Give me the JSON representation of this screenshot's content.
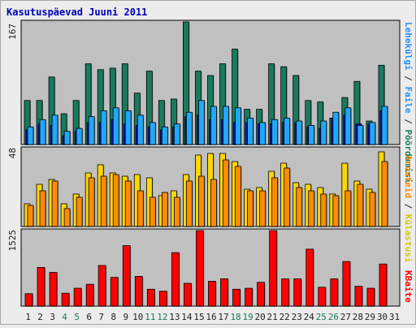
{
  "chart_data": {
    "title": "Kasutuspäevad Juuni 2011",
    "type": "bar",
    "colors": {
      "background": "#c0c0c0",
      "visits": "#1a7a5e",
      "pages": "#1e90ff",
      "files": "#1e90ff",
      "hits_front": "#ffd700",
      "sites": "#ff8c00",
      "kbytes": "#ff0000",
      "title": "#0000b8",
      "weekend": "#1a7a5e",
      "weekday": "#222222"
    },
    "days": [
      "1",
      "2",
      "3",
      "4",
      "5",
      "6",
      "7",
      "8",
      "9",
      "10",
      "11",
      "12",
      "13",
      "14",
      "15",
      "16",
      "17",
      "18",
      "19",
      "20",
      "21",
      "22",
      "23",
      "24",
      "25",
      "26",
      "27",
      "28",
      "29",
      "30",
      "31"
    ],
    "weekend_days": [
      4,
      5,
      11,
      12,
      18,
      19,
      25,
      26
    ],
    "right_labels": {
      "top": [
        {
          "text": "Pöördumisi",
          "color": "#1a7a5e"
        },
        {
          "text": " / ",
          "color": "#222222"
        },
        {
          "text": "Faile",
          "color": "#1e90ff"
        },
        {
          "text": " / ",
          "color": "#222222"
        },
        {
          "text": "Lehekülgi",
          "color": "#1e90ff"
        }
      ],
      "middle": [
        {
          "text": "Külastusi",
          "color": "#d6c800"
        },
        {
          "text": " / ",
          "color": "#222222"
        },
        {
          "text": "Arvuteid",
          "color": "#ff8c00"
        }
      ],
      "bottom": [
        {
          "text": "KBaite",
          "color": "#ff0000"
        }
      ]
    },
    "panels": [
      {
        "ymax_label": "167",
        "ylim": [
          0,
          167
        ],
        "series": [
          {
            "key": "hits",
            "values": [
              60,
              60,
              92,
              42,
              60,
              110,
              102,
              104,
              110,
              70,
              100,
              60,
              62,
              167,
              100,
              94,
              110,
              130,
              48,
              48,
              110,
              106,
              94,
              60,
              58,
              36,
              64,
              86,
              32,
              108,
              0
            ]
          },
          {
            "key": "files",
            "values": [
              24,
              34,
              40,
              18,
              22,
              38,
              46,
              50,
              46,
              40,
              30,
              24,
              28,
              44,
              60,
              52,
              52,
              50,
              36,
              30,
              34,
              36,
              32,
              26,
              32,
              44,
              50,
              26,
              30,
              52,
              0
            ]
          },
          {
            "key": "pages",
            "values": [
              20,
              28,
              26,
              12,
              18,
              30,
              30,
              34,
              28,
              26,
              24,
              20,
              24,
              38,
              40,
              34,
              34,
              30,
              30,
              28,
              28,
              30,
              30,
              24,
              22,
              36,
              40,
              28,
              28,
              46,
              0
            ]
          }
        ]
      },
      {
        "ymax_label": "48",
        "ylim": [
          0,
          48
        ],
        "series": [
          {
            "key": "visits",
            "values": [
              14,
              26,
              29,
              14,
              20,
              33,
              38,
              33,
              31,
              32,
              30,
              19,
              22,
              32,
              44,
              45,
              45,
              40,
              23,
              24,
              34,
              39,
              27,
              26,
              24,
              20,
              39,
              28,
              23,
              46,
              0
            ]
          },
          {
            "key": "sites",
            "values": [
              13,
              22,
              28,
              11,
              18,
              30,
              31,
              32,
              28,
              22,
              18,
              21,
              18,
              28,
              31,
              29,
              41,
              37,
              22,
              22,
              30,
              36,
              24,
              22,
              20,
              19,
              22,
              26,
              21,
              40,
              0
            ]
          }
        ]
      },
      {
        "ymax_label": "1525",
        "ylim": [
          0,
          1525
        ],
        "series": [
          {
            "key": "kbytes",
            "values": [
              250,
              780,
              680,
              260,
              360,
              440,
              820,
              580,
              1220,
              600,
              340,
              300,
              1080,
              460,
              1525,
              500,
              550,
              340,
              360,
              480,
              1525,
              550,
              550,
              1150,
              380,
              550,
              900,
              400,
              360,
              850,
              0
            ]
          }
        ]
      }
    ]
  }
}
